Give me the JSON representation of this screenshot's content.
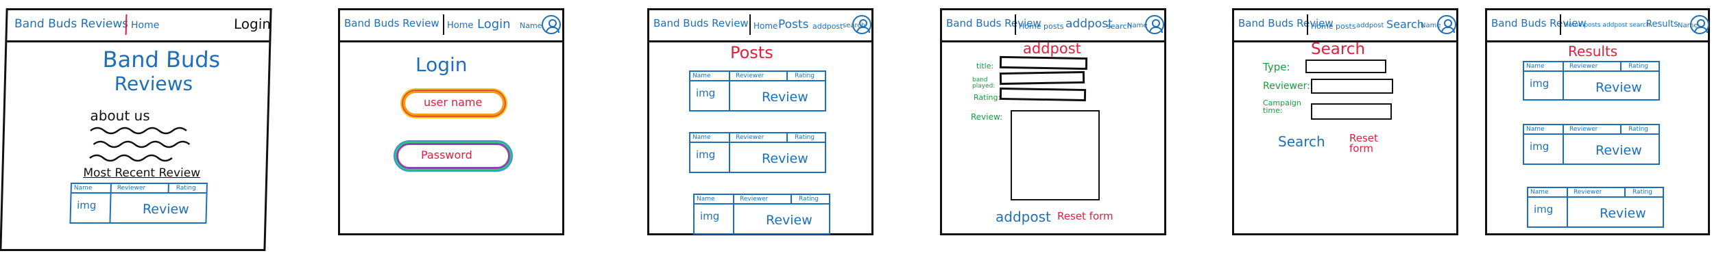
{
  "home": {
    "brand": "Band Buds Reviews",
    "nav_home": "Home",
    "nav_login": "Login",
    "title_line1": "Band Buds",
    "title_line2": "Reviews",
    "about": "about us",
    "recent": "Most Recent Review"
  },
  "login": {
    "brand": "Band Buds Review",
    "nav_home": "Home",
    "nav_login": "Login",
    "nav_name": "Name",
    "heading": "Login",
    "username": "user name",
    "password": "Password"
  },
  "posts": {
    "brand": "Band Buds Review",
    "nav_home": "Home",
    "nav_posts": "Posts",
    "nav_addpost": "addpost",
    "nav_search": "search",
    "nav_name": "Name",
    "heading": "Posts"
  },
  "addpost": {
    "brand": "Band Buds Review",
    "nav_home": "Home",
    "nav_posts": "posts",
    "nav_addpost": "addpost",
    "nav_search": "search",
    "nav_name": "Name",
    "heading": "addpost",
    "label_title": "title:",
    "label_band": "band played:",
    "label_rating": "Rating:",
    "label_review": "Review:",
    "submit": "addpost",
    "reset": "Reset form"
  },
  "search": {
    "brand": "Band Buds Review",
    "nav_home": "Home",
    "nav_posts": "posts",
    "nav_addpost": "addpost",
    "nav_search": "Search",
    "nav_name": "Name",
    "heading": "Search",
    "label_type": "Type:",
    "label_reviewer": "Reviewer:",
    "label_campaign": "Campaign time:",
    "search_btn": "Search",
    "reset": "Reset form"
  },
  "results": {
    "brand": "Band Buds Review",
    "nav_links": "Home posts addpost search",
    "nav_results": "Results",
    "nav_name": "Name",
    "heading": "Results"
  },
  "card": {
    "col_name": "Name",
    "col_reviewer": "Reviewer",
    "col_rating": "Rating",
    "img": "img",
    "review": "Review"
  },
  "colors": {
    "ink": "#111111",
    "blue": "#1f6fb7",
    "red": "#e01f3d",
    "green": "#1a9b3e"
  }
}
